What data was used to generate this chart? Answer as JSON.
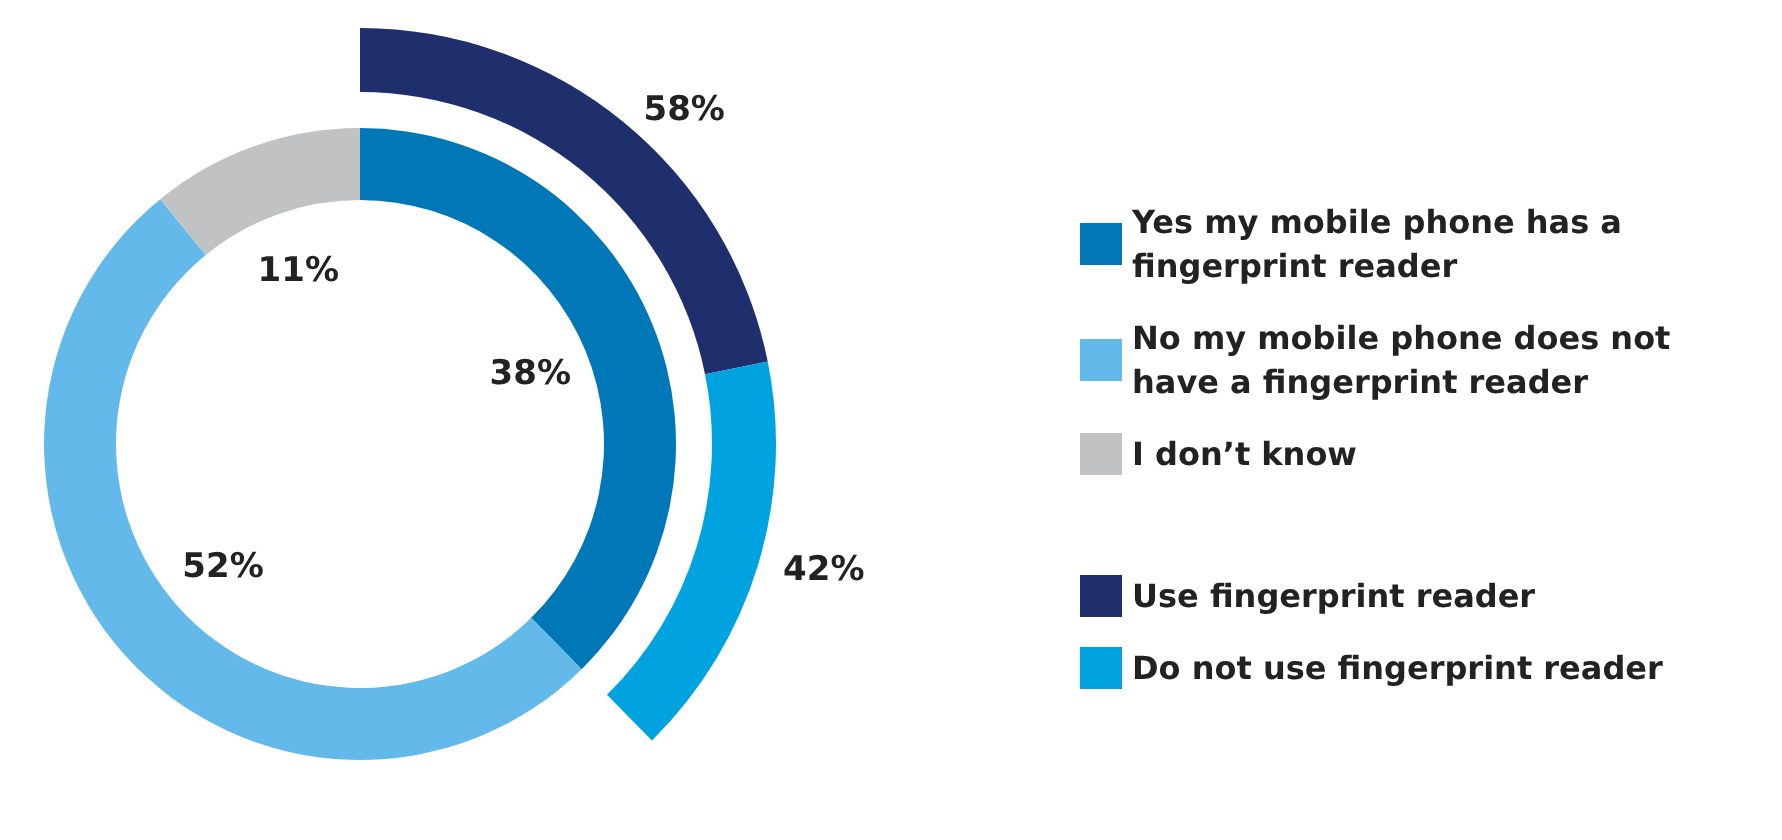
{
  "chart_data": [
    {
      "type": "donut",
      "categories": [
        "Yes my mobile phone has a fingerprint reader",
        "No my mobile phone does not have a fingerprint reader",
        "I don’t know"
      ],
      "values": [
        38,
        52,
        11
      ],
      "colors": [
        "#0077b6",
        "#63b9e9",
        "#c1c2c4"
      ],
      "value_labels": [
        "38%",
        "52%",
        "11%"
      ],
      "legend": "right"
    },
    {
      "type": "donut",
      "categories": [
        "Use fingerprint reader",
        "Do not use fingerprint reader"
      ],
      "values": [
        58,
        42
      ],
      "colors": [
        "#1f2f6e",
        "#00a3e0"
      ],
      "value_labels": [
        "58%",
        "42%"
      ],
      "legend": "right"
    }
  ]
}
